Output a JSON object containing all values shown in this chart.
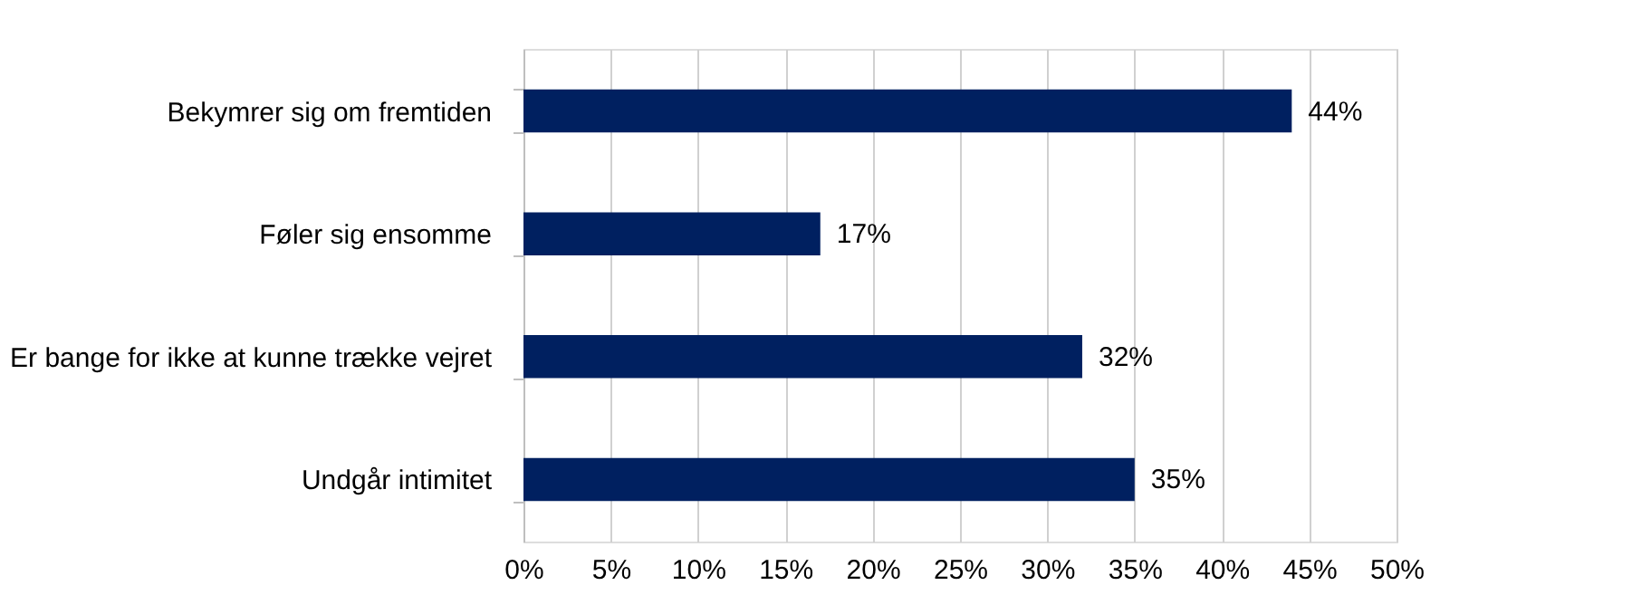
{
  "chart_data": {
    "type": "bar",
    "orientation": "horizontal",
    "categories": [
      "Bekymrer sig om fremtiden",
      "Føler sig ensomme",
      "Er bange for ikke at kunne trække vejret",
      "Undgår intimitet"
    ],
    "values": [
      44,
      17,
      32,
      35
    ],
    "color": "#002060",
    "value_labels": [
      "44%",
      "17%",
      "32%",
      "35%"
    ],
    "xlim": [
      0,
      50
    ],
    "xticks": [
      {
        "value": 0,
        "label": "0%"
      },
      {
        "value": 5,
        "label": "5%"
      },
      {
        "value": 10,
        "label": "10%"
      },
      {
        "value": 15,
        "label": "15%"
      },
      {
        "value": 20,
        "label": "20%"
      },
      {
        "value": 25,
        "label": "25%"
      },
      {
        "value": 30,
        "label": "30%"
      },
      {
        "value": 35,
        "label": "35%"
      },
      {
        "value": 40,
        "label": "40%"
      },
      {
        "value": 45,
        "label": "45%"
      },
      {
        "value": 50,
        "label": "50%"
      }
    ],
    "grid": "x"
  }
}
